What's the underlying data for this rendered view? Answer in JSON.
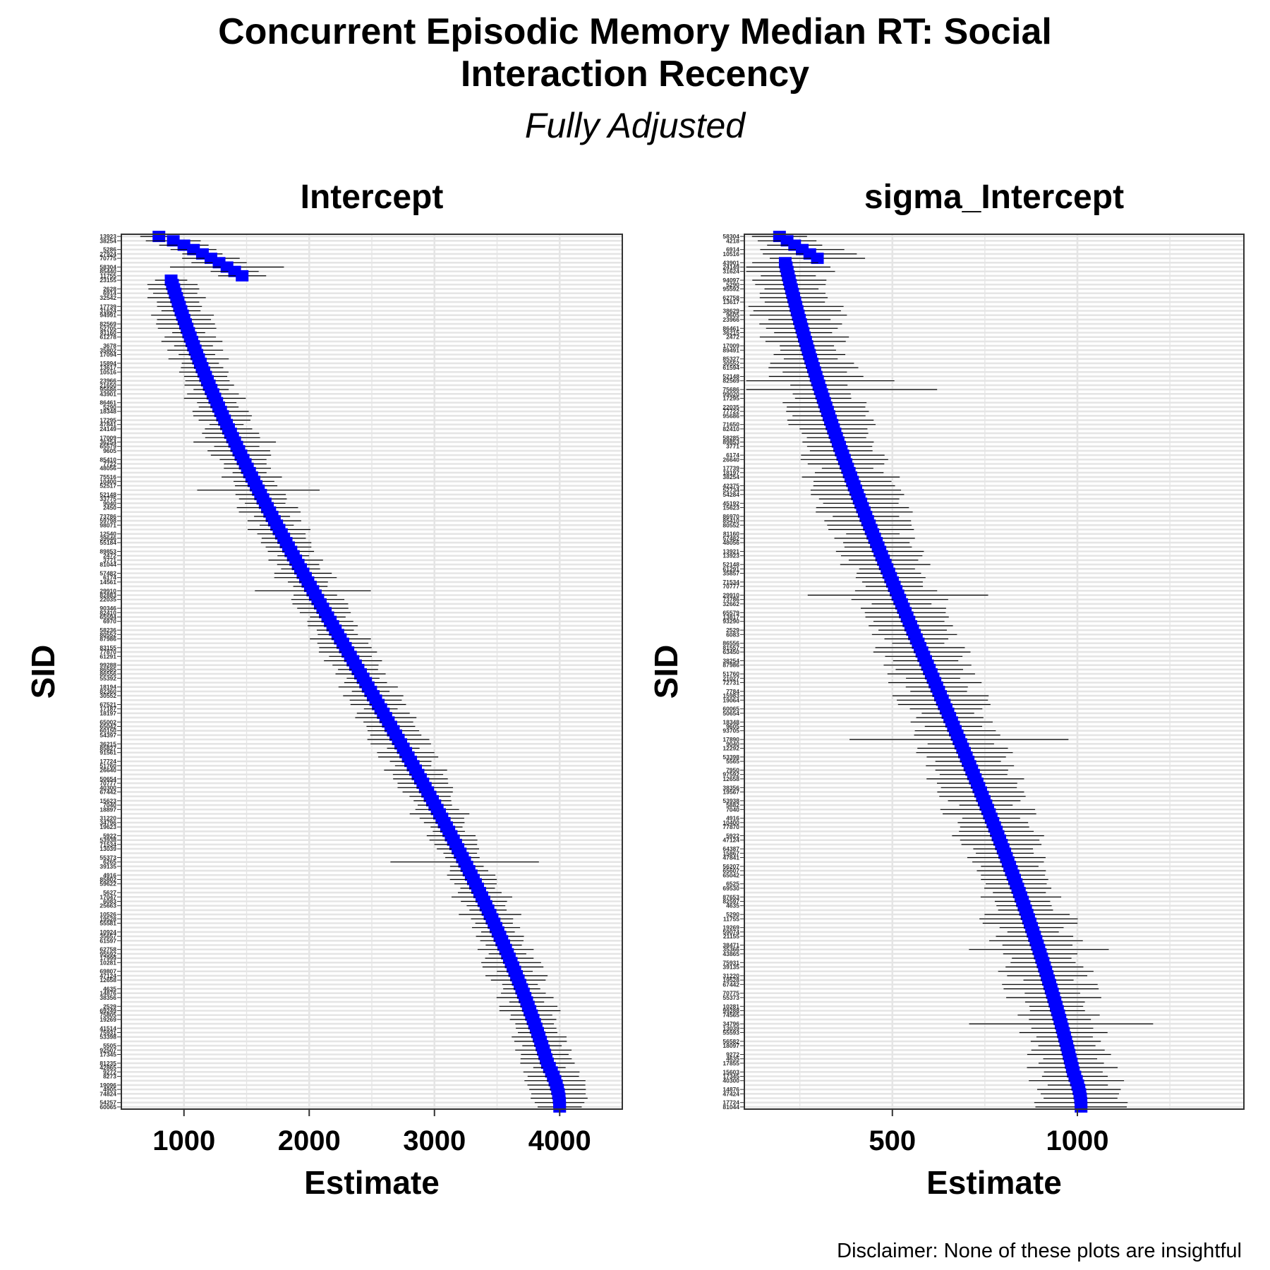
{
  "title_line1": "Concurrent Episodic Memory Median RT: Social",
  "title_line2": "Interaction Recency",
  "subtitle": "Fully Adjusted",
  "caption": "Disclaimer: None of these plots are insightful",
  "colors": {
    "point": "#0000ff",
    "interval": "#000000",
    "grid": "#e5e5e5",
    "border": "#333333"
  },
  "chart_data": [
    {
      "type": "scatter",
      "panel_title": "Intercept",
      "xlabel": "Estimate",
      "ylabel": "SID",
      "xlim": [
        500,
        4500
      ],
      "x_ticks": [
        1000,
        2000,
        3000,
        4000
      ],
      "grid": true,
      "n_subjects": 200,
      "start_estimate": 800,
      "end_estimate": 4000,
      "labels": [
        "13923",
        "38254",
        "5286",
        "27924",
        "70775",
        "58304",
        "85440",
        "11755",
        "23155",
        "2628",
        "6914",
        "32542",
        "17739",
        "31624",
        "94991",
        "82569",
        "52705",
        "81160",
        "61278",
        "3678",
        "35802",
        "17094",
        "15894",
        "13617",
        "10516",
        "23966",
        "21650",
        "95686",
        "43901",
        "86461",
        "5290",
        "18348",
        "17295",
        "47841",
        "24149",
        "17009",
        "36254",
        "65579",
        "9605",
        "85410",
        "7722",
        "48056",
        "75516",
        "10400",
        "52517",
        "52148",
        "33775",
        "9040",
        "2450",
        "73786",
        "59798",
        "98071",
        "12540",
        "39646",
        "55184",
        "89853",
        "2472",
        "3771",
        "81044",
        "57482",
        "6174",
        "14561",
        "29910",
        "82883",
        "22035",
        "90346",
        "82410",
        "65594",
        "6970",
        "58236",
        "80552",
        "87986",
        "83155",
        "77870",
        "61291",
        "99288",
        "86585",
        "86556",
        "55392",
        "18194",
        "82360",
        "30552",
        "67521",
        "17187",
        "18197",
        "65002",
        "65042",
        "60150",
        "54397",
        "36215",
        "85827",
        "91561",
        "17724",
        "51760",
        "26640",
        "50654",
        "70777",
        "40300",
        "67442",
        "15623",
        "7040",
        "18897",
        "31220",
        "34796",
        "19623",
        "5922",
        "53938",
        "71534",
        "13039",
        "55373",
        "6265",
        "39135",
        "4916",
        "85802",
        "59622",
        "5627",
        "17047",
        "6083",
        "25663",
        "10526",
        "19528",
        "55581",
        "10924",
        "35657",
        "61597",
        "62758",
        "95592",
        "17999",
        "10281",
        "69807",
        "47124",
        "12658",
        "4635",
        "14876",
        "38356",
        "2529",
        "69249",
        "75805",
        "19269",
        "41514",
        "75931",
        "53398",
        "5505",
        "92507",
        "17345",
        "81235",
        "42865",
        "9272",
        "8273",
        "19096",
        "4905",
        "74824",
        "54257",
        "60065"
      ]
    },
    {
      "type": "scatter",
      "panel_title": "sigma_Intercept",
      "xlabel": "Estimate",
      "ylabel": "SID",
      "xlim": [
        100,
        1450
      ],
      "x_ticks": [
        500,
        1000
      ],
      "grid": true,
      "n_subjects": 200,
      "start_estimate": 195,
      "end_estimate": 1010,
      "labels": [
        "58304",
        "4218",
        "6914",
        "10516",
        "43901",
        "24149",
        "31624",
        "94097",
        "5290",
        "95592",
        "62758",
        "13617",
        "38629",
        "9605",
        "23966",
        "86461",
        "36215",
        "2472",
        "17009",
        "89491",
        "85327",
        "30552",
        "61594",
        "52148",
        "82569",
        "75686",
        "99020",
        "17295",
        "22035",
        "77722",
        "95686",
        "71650",
        "82410",
        "58285",
        "89853",
        "3771",
        "6174",
        "26640",
        "17739",
        "18197",
        "38254",
        "42375",
        "52734",
        "54284",
        "45192",
        "15623",
        "86970",
        "85410",
        "80552",
        "81160",
        "57482",
        "48056",
        "13921",
        "13923",
        "52148",
        "61291",
        "35857",
        "71534",
        "70777",
        "29910",
        "73786",
        "32662",
        "65579",
        "13817",
        "93290",
        "2529",
        "6083",
        "86556",
        "81557",
        "63450",
        "38254",
        "87986",
        "51760",
        "21027",
        "72731",
        "7784",
        "15983",
        "19064",
        "60065",
        "50654",
        "18348",
        "9605",
        "93705",
        "17890",
        "9040",
        "12292",
        "53398",
        "5565",
        "7950",
        "97592",
        "12658",
        "38356",
        "19567",
        "53938",
        "5882",
        "7040",
        "4916",
        "10400",
        "77870",
        "5922",
        "47124",
        "64387",
        "15867",
        "47841",
        "56207",
        "65607",
        "65042",
        "6525",
        "69530",
        "87653",
        "82597",
        "4635",
        "5290",
        "11755",
        "19269",
        "59074",
        "21155",
        "38471",
        "35366",
        "43865",
        "75931",
        "39135",
        "31220",
        "19528",
        "67442",
        "70775",
        "55373",
        "10281",
        "99288",
        "74565",
        "34796",
        "13039",
        "55593",
        "56582",
        "18097",
        "9272",
        "4635",
        "17855",
        "15603",
        "17345",
        "40300",
        "14876",
        "47424",
        "17724",
        "81044"
      ]
    }
  ]
}
